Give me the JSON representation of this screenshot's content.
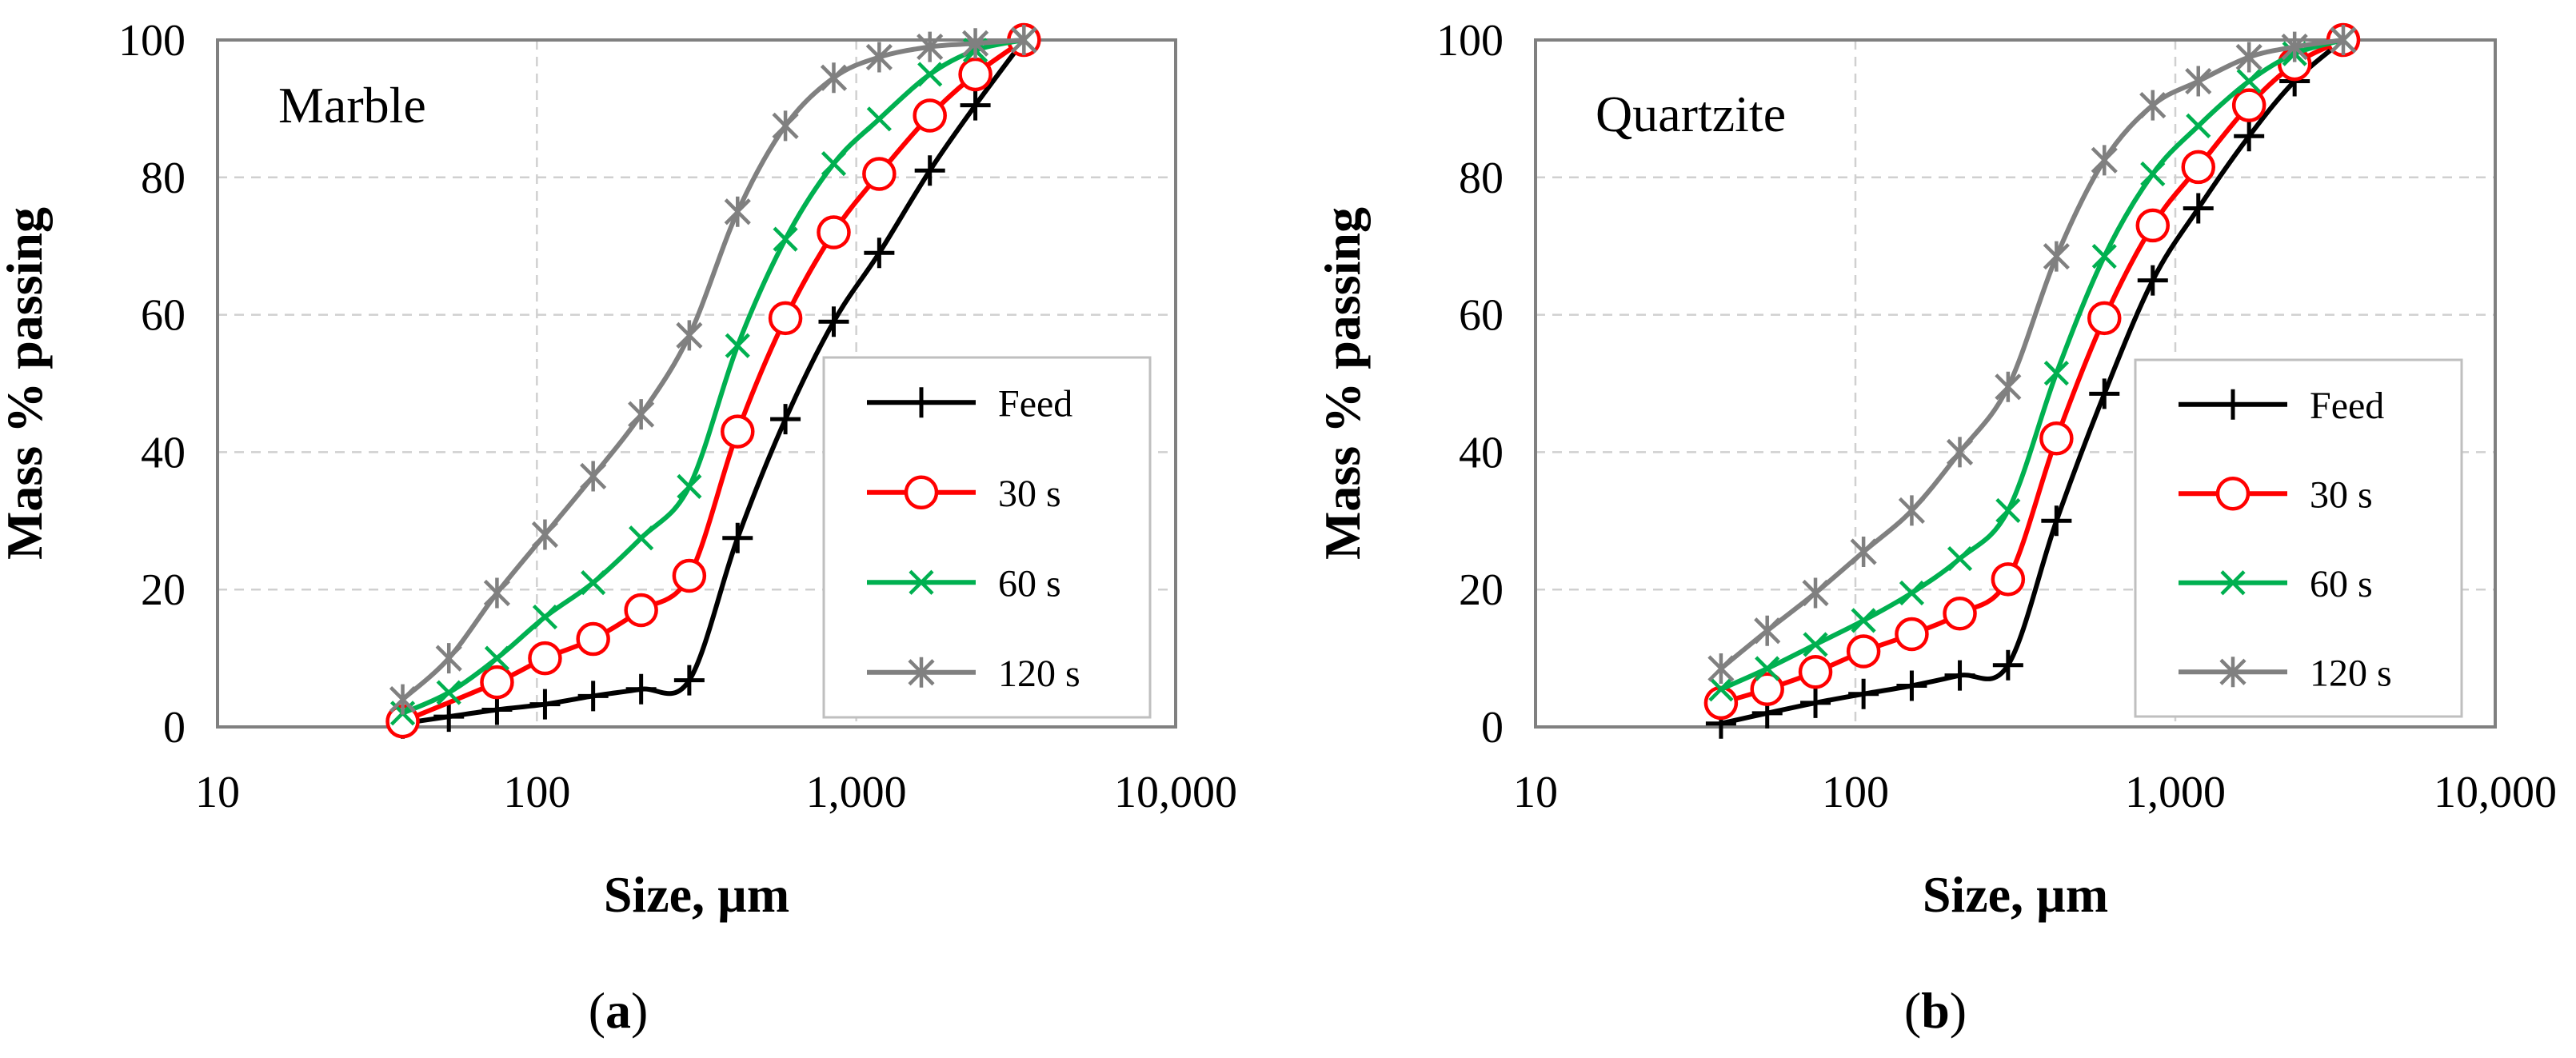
{
  "chart_data": [
    {
      "type": "line",
      "title": "Marble",
      "panel_label": "a",
      "xlabel": "Size, µm",
      "ylabel": "Mass % passing",
      "xscale": "log",
      "xlim": [
        10,
        10000
      ],
      "ylim": [
        0,
        100
      ],
      "xticks": [
        "10",
        "100",
        "1,000",
        "10,000"
      ],
      "yticks": [
        "0",
        "20",
        "40",
        "60",
        "80",
        "100"
      ],
      "grid": true,
      "legend_position": "bottom-right",
      "series": [
        {
          "name": "Feed",
          "color": "#000000",
          "marker": "plus",
          "x": [
            38,
            53,
            75,
            106,
            150,
            212,
            300,
            425,
            600,
            850,
            1180,
            1700,
            2360,
            3350
          ],
          "y": [
            0.5,
            1.5,
            2.5,
            3.3,
            4.5,
            5.5,
            6.8,
            27.5,
            44.8,
            59,
            69,
            81,
            90.5,
            100
          ]
        },
        {
          "name": "30 s",
          "color": "#ff0000",
          "marker": "circle",
          "x": [
            38,
            75,
            106,
            150,
            212,
            300,
            425,
            600,
            850,
            1180,
            1700,
            2360,
            3350
          ],
          "y": [
            0.8,
            6.5,
            10,
            12.8,
            17,
            22,
            43,
            59.5,
            72,
            80.5,
            89,
            95,
            100
          ]
        },
        {
          "name": "60 s",
          "color": "#00b050",
          "marker": "x",
          "x": [
            38,
            53,
            75,
            106,
            150,
            212,
            300,
            425,
            600,
            850,
            1180,
            1700,
            2360,
            3350
          ],
          "y": [
            2,
            5,
            10,
            16,
            21,
            27.5,
            35,
            55.5,
            71,
            82,
            88.5,
            95,
            98.5,
            100
          ]
        },
        {
          "name": "120 s",
          "color": "#808080",
          "marker": "star",
          "x": [
            38,
            53,
            75,
            106,
            150,
            212,
            300,
            425,
            600,
            850,
            1180,
            1700,
            2360,
            3350
          ],
          "y": [
            4,
            10,
            19.5,
            28,
            36.5,
            45.5,
            57,
            75,
            87.5,
            94.5,
            97.5,
            99,
            99.5,
            100
          ]
        }
      ]
    },
    {
      "type": "line",
      "title": "Quartzite",
      "panel_label": "b",
      "xlabel": "Size, µm",
      "ylabel": "Mass % passing",
      "xscale": "log",
      "xlim": [
        10,
        10000
      ],
      "ylim": [
        0,
        100
      ],
      "xticks": [
        "10",
        "100",
        "1,000",
        "10,000"
      ],
      "yticks": [
        "0",
        "20",
        "40",
        "60",
        "80",
        "100"
      ],
      "grid": true,
      "legend_position": "bottom-right",
      "series": [
        {
          "name": "Feed",
          "color": "#000000",
          "marker": "plus",
          "x": [
            38,
            53,
            75,
            106,
            150,
            212,
            300,
            425,
            600,
            850,
            1180,
            1700,
            2360,
            3350
          ],
          "y": [
            0.5,
            2,
            3.5,
            4.8,
            6,
            7.5,
            9,
            30,
            48.5,
            65,
            75.5,
            86,
            94,
            100
          ]
        },
        {
          "name": "30 s",
          "color": "#ff0000",
          "marker": "circle",
          "x": [
            38,
            53,
            75,
            106,
            150,
            212,
            300,
            425,
            600,
            850,
            1180,
            1700,
            2360,
            3350
          ],
          "y": [
            3.5,
            5.5,
            8,
            11,
            13.5,
            16.5,
            21.5,
            42,
            59.5,
            73,
            81.5,
            90.5,
            96.5,
            100
          ]
        },
        {
          "name": "60 s",
          "color": "#00b050",
          "marker": "x",
          "x": [
            38,
            53,
            75,
            106,
            150,
            212,
            300,
            425,
            600,
            850,
            1180,
            1700,
            2360,
            3350
          ],
          "y": [
            5.5,
            8.5,
            12,
            15.5,
            19.5,
            24.5,
            31.5,
            51.5,
            68.5,
            80.5,
            87.5,
            94,
            98,
            100
          ]
        },
        {
          "name": "120 s",
          "color": "#808080",
          "marker": "star",
          "x": [
            38,
            53,
            75,
            106,
            150,
            212,
            300,
            425,
            600,
            850,
            1180,
            1700,
            2360,
            3350
          ],
          "y": [
            8.5,
            14,
            19.5,
            25.5,
            31.5,
            40,
            49.5,
            68.5,
            82.5,
            90.5,
            94,
            97.5,
            99,
            100
          ]
        }
      ]
    }
  ]
}
